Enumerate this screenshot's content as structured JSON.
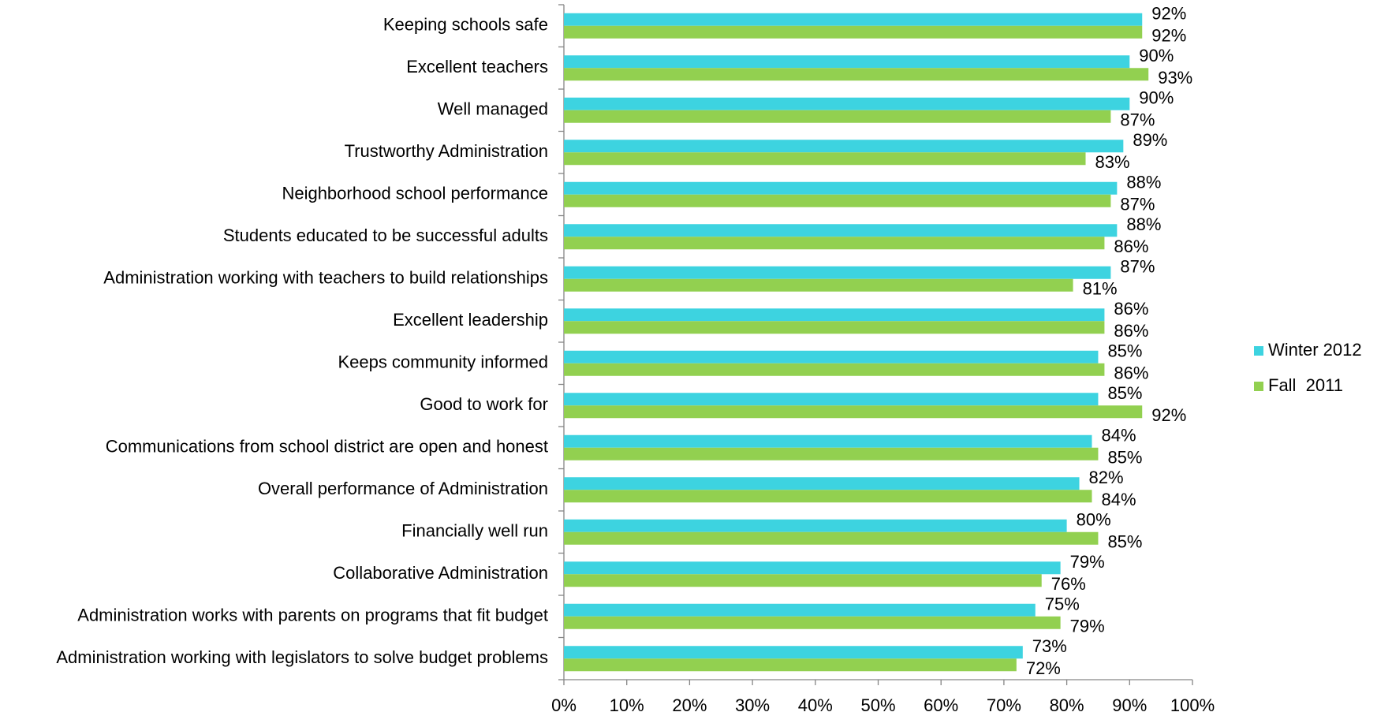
{
  "chart_data": {
    "type": "bar",
    "orientation": "horizontal",
    "categories": [
      "Keeping schools safe",
      "Excellent teachers",
      "Well managed",
      "Trustworthy Administration",
      "Neighborhood school performance",
      "Students educated to be successful adults",
      "Administration working with teachers to build relationships",
      "Excellent leadership",
      "Keeps community informed",
      "Good to work for",
      "Communications from school district are open and honest",
      "Overall performance of Administration",
      "Financially well run",
      "Collaborative Administration",
      "Administration works with parents on programs that fit budget",
      "Administration working with legislators to solve budget problems"
    ],
    "series": [
      {
        "name": "Winter 2012",
        "color": "#3dd3e0",
        "values": [
          92,
          90,
          90,
          89,
          88,
          88,
          87,
          86,
          85,
          85,
          84,
          82,
          80,
          79,
          75,
          73
        ],
        "value_labels": [
          "92%",
          "90%",
          "90%",
          "89%",
          "88%",
          "88%",
          "87%",
          "86%",
          "85%",
          "85%",
          "84%",
          "82%",
          "80%",
          "79%",
          "75%",
          "73%"
        ]
      },
      {
        "name": "Fall  2011",
        "color": "#92d050",
        "values": [
          92,
          93,
          87,
          83,
          87,
          86,
          81,
          86,
          86,
          92,
          85,
          84,
          85,
          76,
          79,
          72
        ],
        "value_labels": [
          "92%",
          "93%",
          "87%",
          "83%",
          "87%",
          "86%",
          "81%",
          "86%",
          "86%",
          "92%",
          "85%",
          "84%",
          "85%",
          "76%",
          "79%",
          "72%"
        ]
      }
    ],
    "xlim": [
      0,
      100
    ],
    "xticks": [
      {
        "value": 0,
        "label": "0%"
      },
      {
        "value": 10,
        "label": "10%"
      },
      {
        "value": 20,
        "label": "20%"
      },
      {
        "value": 30,
        "label": "30%"
      },
      {
        "value": 40,
        "label": "40%"
      },
      {
        "value": 50,
        "label": "50%"
      },
      {
        "value": 60,
        "label": "60%"
      },
      {
        "value": 70,
        "label": "70%"
      },
      {
        "value": 80,
        "label": "80%"
      },
      {
        "value": 90,
        "label": "90%"
      },
      {
        "value": 100,
        "label": "100%"
      }
    ],
    "grid": false,
    "legend": "right"
  }
}
